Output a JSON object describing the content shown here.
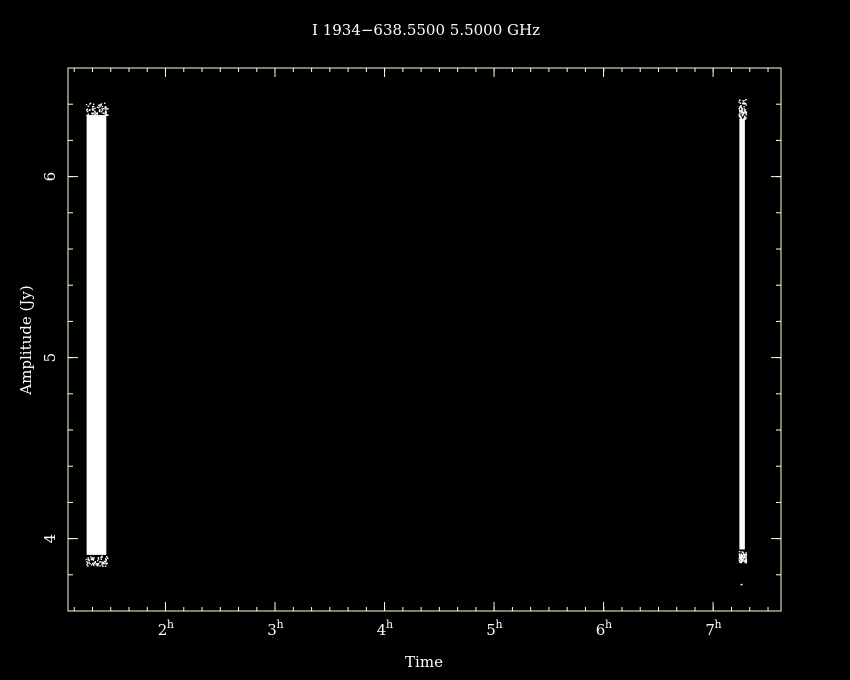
{
  "chart_data": {
    "type": "scatter",
    "title": "I 1934−638.5500  5.5000  GHz",
    "xlabel": "Time",
    "ylabel": "Amplitude (Jy)",
    "xlim": [
      1.11,
      7.62
    ],
    "ylim": [
      3.6,
      6.6
    ],
    "x_ticks": [
      {
        "value": 2,
        "label": "2",
        "sup": "h"
      },
      {
        "value": 3,
        "label": "3",
        "sup": "h"
      },
      {
        "value": 4,
        "label": "4",
        "sup": "h"
      },
      {
        "value": 5,
        "label": "5",
        "sup": "h"
      },
      {
        "value": 6,
        "label": "6",
        "sup": "h"
      },
      {
        "value": 7,
        "label": "7",
        "sup": "h"
      }
    ],
    "x_minor_step": 0.1667,
    "y_ticks": [
      {
        "value": 4,
        "label": "4"
      },
      {
        "value": 5,
        "label": "5"
      },
      {
        "value": 6,
        "label": "6"
      }
    ],
    "y_minor_step": 0.2,
    "grid": false,
    "colors": {
      "background": "#000000",
      "foreground": "#ffffdd",
      "points": "#ffffff"
    },
    "series": [
      {
        "x_range": [
          1.28,
          1.46
        ],
        "y_range": [
          3.91,
          6.34
        ],
        "y_scatter_extent": [
          3.85,
          6.41
        ]
      },
      {
        "x_range": [
          7.24,
          7.29
        ],
        "y_range": [
          3.94,
          6.32
        ],
        "y_scatter_extent": [
          3.87,
          6.44
        ],
        "outlier": {
          "x": 7.25,
          "y": 3.75
        }
      }
    ]
  }
}
